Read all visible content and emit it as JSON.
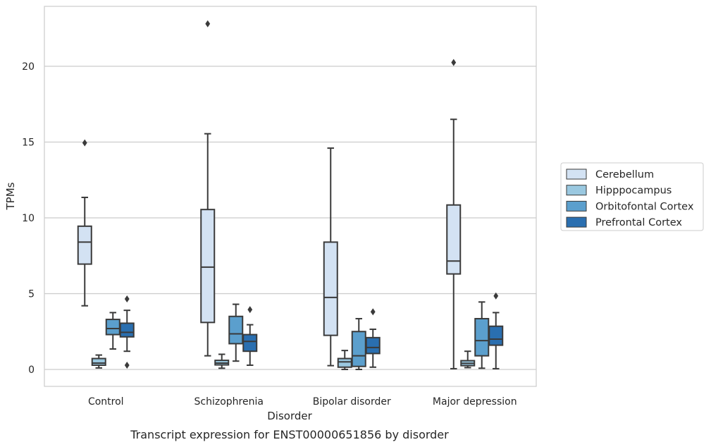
{
  "chart_data": {
    "type": "box",
    "caption": "Transcript expression for ENST00000651856 by disorder",
    "xlabel": "Disorder",
    "ylabel": "TPMs",
    "ylim": [
      -1.1,
      24
    ],
    "yticks": [
      0,
      5,
      10,
      15,
      20
    ],
    "grid": true,
    "legend_position": "right",
    "categories": [
      "Control",
      "Schizophrenia",
      "Bipolar disorder",
      "Major depression"
    ],
    "series": [
      {
        "name": "Cerebellum",
        "color": "#d3e2f3",
        "boxes": [
          {
            "whisker_low": 4.2,
            "q1": 6.95,
            "median": 8.4,
            "q3": 9.45,
            "whisker_high": 11.35,
            "outliers": [
              14.95
            ]
          },
          {
            "whisker_low": 0.9,
            "q1": 3.1,
            "median": 6.75,
            "q3": 10.55,
            "whisker_high": 15.55,
            "outliers": [
              22.8
            ]
          },
          {
            "whisker_low": 0.25,
            "q1": 2.25,
            "median": 4.75,
            "q3": 8.4,
            "whisker_high": 14.6,
            "outliers": []
          },
          {
            "whisker_low": 0.05,
            "q1": 6.3,
            "median": 7.15,
            "q3": 10.85,
            "whisker_high": 16.5,
            "outliers": [
              20.25
            ]
          }
        ]
      },
      {
        "name": "Hipppocampus",
        "color": "#9ac8e0",
        "boxes": [
          {
            "whisker_low": 0.1,
            "q1": 0.28,
            "median": 0.42,
            "q3": 0.72,
            "whisker_high": 0.95,
            "outliers": []
          },
          {
            "whisker_low": 0.08,
            "q1": 0.3,
            "median": 0.42,
            "q3": 0.6,
            "whisker_high": 1.0,
            "outliers": []
          },
          {
            "whisker_low": 0.0,
            "q1": 0.15,
            "median": 0.5,
            "q3": 0.72,
            "whisker_high": 1.25,
            "outliers": []
          },
          {
            "whisker_low": 0.12,
            "q1": 0.25,
            "median": 0.4,
            "q3": 0.58,
            "whisker_high": 1.2,
            "outliers": []
          }
        ]
      },
      {
        "name": "Orbitofontal Cortex",
        "color": "#5b9fcd",
        "boxes": [
          {
            "whisker_low": 1.35,
            "q1": 2.3,
            "median": 2.7,
            "q3": 3.3,
            "whisker_high": 3.75,
            "outliers": []
          },
          {
            "whisker_low": 0.55,
            "q1": 1.7,
            "median": 2.35,
            "q3": 3.5,
            "whisker_high": 4.3,
            "outliers": []
          },
          {
            "whisker_low": 0.0,
            "q1": 0.2,
            "median": 0.9,
            "q3": 2.5,
            "whisker_high": 3.35,
            "outliers": []
          },
          {
            "whisker_low": 0.08,
            "q1": 0.9,
            "median": 1.9,
            "q3": 3.35,
            "whisker_high": 4.45,
            "outliers": []
          }
        ]
      },
      {
        "name": "Prefrontal Cortex",
        "color": "#2a6fb0",
        "boxes": [
          {
            "whisker_low": 1.2,
            "q1": 2.15,
            "median": 2.45,
            "q3": 3.05,
            "whisker_high": 3.9,
            "outliers": [
              4.65,
              0.28
            ]
          },
          {
            "whisker_low": 0.28,
            "q1": 1.2,
            "median": 1.85,
            "q3": 2.3,
            "whisker_high": 2.95,
            "outliers": [
              3.95
            ]
          },
          {
            "whisker_low": 0.15,
            "q1": 1.05,
            "median": 1.45,
            "q3": 2.1,
            "whisker_high": 2.65,
            "outliers": [
              3.8
            ]
          },
          {
            "whisker_low": 0.05,
            "q1": 1.6,
            "median": 2.0,
            "q3": 2.85,
            "whisker_high": 3.75,
            "outliers": [
              4.85
            ]
          }
        ]
      }
    ]
  }
}
